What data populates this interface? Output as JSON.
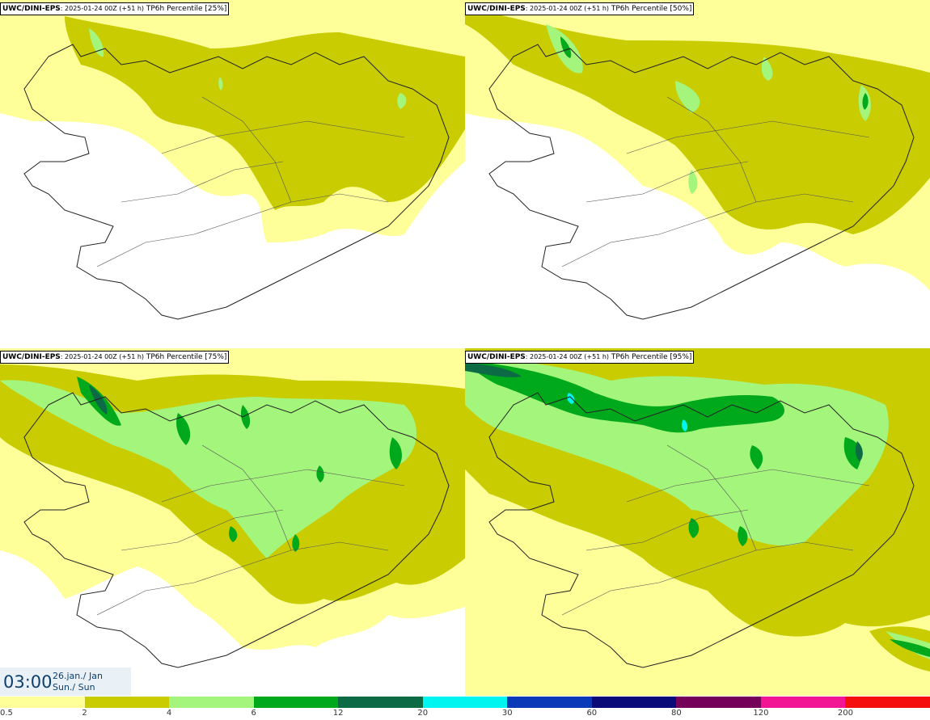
{
  "panels": [
    {
      "id": "p25",
      "model": "UWC/DINI-EPS",
      "run": ": 2025-01-24 00Z (+51 h)",
      "product": " TP6h Percentile [25%]"
    },
    {
      "id": "p50",
      "model": "UWC/DINI-EPS",
      "run": ": 2025-01-24 00Z (+51 h)",
      "product": " TP6h Percentile [50%]"
    },
    {
      "id": "p75",
      "model": "UWC/DINI-EPS",
      "run": ": 2025-01-24 00Z (+51 h)",
      "product": " TP6h Percentile [75%]"
    },
    {
      "id": "p95",
      "model": "UWC/DINI-EPS",
      "run": ": 2025-01-24 00Z (+51 h)",
      "product": " TP6h Percentile [95%]"
    }
  ],
  "valid_time": {
    "time": "03:00",
    "date_line1": "26.jan./ Jan",
    "date_line2": "Sun./ Sun"
  },
  "legend": {
    "labels": [
      "0.5",
      "2",
      "4",
      "6",
      "12",
      "20",
      "30",
      "60",
      "80",
      "120",
      "200"
    ],
    "colors": [
      "#ffff99",
      "#c8cc00",
      "#a4f57c",
      "#00a81c",
      "#0c6b45",
      "#00f5f0",
      "#0b3ab8",
      "#0a0a78",
      "#75005a",
      "#f31694",
      "#f50f0f"
    ]
  },
  "map_colors": {
    "c1": "#ffff99",
    "c2": "#c8cc00",
    "c3": "#a4f57c",
    "c4": "#00a81c",
    "c5": "#0c6b45",
    "c6": "#00f5f0",
    "coast": "#222222",
    "roads": "#555555"
  }
}
